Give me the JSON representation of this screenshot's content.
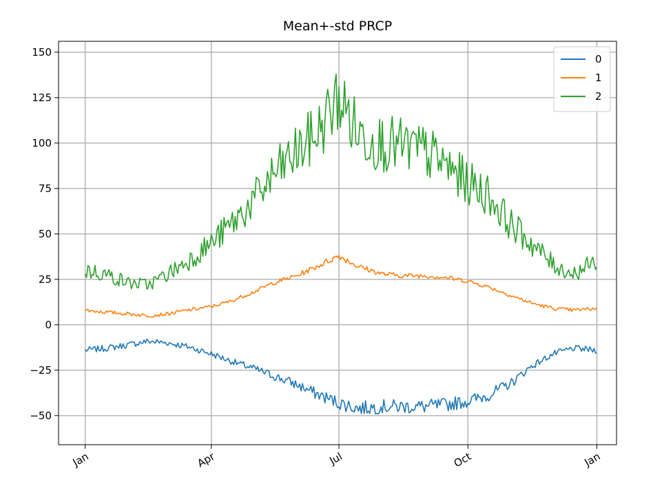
{
  "chart_data": {
    "type": "line",
    "title": "Mean+-std   PRCP",
    "xlabel": "",
    "ylabel": "",
    "x_ticks": [
      {
        "day": 1,
        "label": "Jan"
      },
      {
        "day": 91,
        "label": "Apr"
      },
      {
        "day": 182,
        "label": "Jul"
      },
      {
        "day": 274,
        "label": "Oct"
      },
      {
        "day": 366,
        "label": "Jan"
      }
    ],
    "xlim": [
      -18,
      380
    ],
    "ylim": [
      -66,
      156
    ],
    "y_ticks": [
      -50,
      -25,
      0,
      25,
      50,
      75,
      100,
      125,
      150
    ],
    "grid": true,
    "legend_position": "top-right",
    "x": [
      1,
      15,
      32,
      46,
      60,
      74,
      91,
      105,
      121,
      135,
      152,
      166,
      182,
      196,
      213,
      227,
      244,
      258,
      274,
      288,
      305,
      319,
      335,
      349,
      366
    ],
    "series": [
      {
        "name": "0",
        "color": "#1f77b4",
        "values": [
          -14,
          -13,
          -11,
          -9,
          -10,
          -12,
          -16,
          -20,
          -24,
          -28,
          -33,
          -38,
          -43,
          -46,
          -45,
          -45,
          -45,
          -44,
          -42,
          -39,
          -32,
          -23,
          -16,
          -13,
          -14
        ]
      },
      {
        "name": "1",
        "color": "#ff7f0e",
        "values": [
          8,
          7,
          6,
          5,
          6,
          8,
          10,
          13,
          18,
          23,
          27,
          32,
          38,
          32,
          28,
          27,
          27,
          26,
          24,
          21,
          16,
          12,
          9,
          8,
          9
        ]
      },
      {
        "name": "2",
        "color": "#2ca02c",
        "values": [
          30,
          28,
          23,
          22,
          28,
          35,
          45,
          55,
          68,
          82,
          95,
          105,
          125,
          105,
          100,
          98,
          95,
          88,
          78,
          72,
          55,
          45,
          33,
          28,
          35
        ]
      }
    ]
  }
}
